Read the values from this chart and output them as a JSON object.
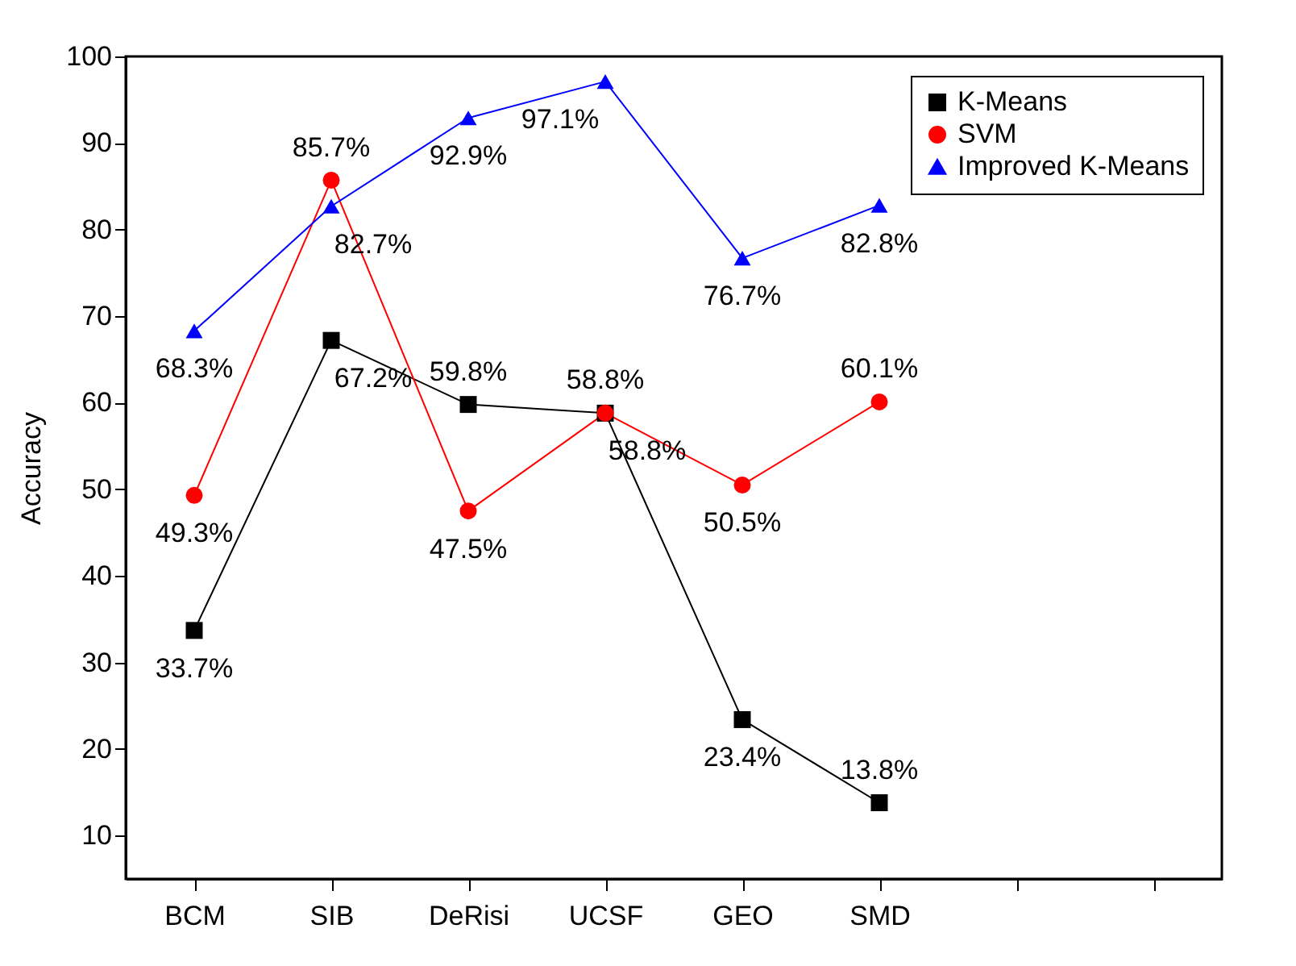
{
  "chart_data": {
    "type": "line",
    "ylabel": "Accuracy",
    "categories": [
      "BCM",
      "SIB",
      "DeRisi",
      "UCSF",
      "GEO",
      "SMD",
      null,
      null
    ],
    "ylim": [
      5,
      100
    ],
    "yticks": [
      10,
      20,
      30,
      40,
      50,
      60,
      70,
      80,
      90,
      100
    ],
    "legend": "top right",
    "grid": false,
    "series": [
      {
        "name": "K-Means",
        "color": "#000000",
        "marker": "square",
        "values": [
          33.7,
          67.2,
          59.8,
          58.8,
          23.4,
          13.8,
          null,
          null
        ],
        "value_labels": [
          "33.7%",
          "67.2%",
          "59.8%",
          "58.8%",
          "23.4%",
          "13.8%",
          null,
          null
        ]
      },
      {
        "name": "SVM",
        "color": "#ff0000",
        "marker": "circle",
        "values": [
          49.3,
          85.7,
          47.5,
          58.8,
          50.5,
          60.1,
          null,
          null
        ],
        "value_labels": [
          "49.3%",
          "85.7%",
          "47.5%",
          "58.8%",
          "50.5%",
          "60.1%",
          null,
          null
        ]
      },
      {
        "name": "Improved K-Means",
        "color": "#0000ff",
        "marker": "triangle",
        "values": [
          68.3,
          82.7,
          92.9,
          97.1,
          76.7,
          82.8,
          null,
          null
        ],
        "value_labels": [
          "68.3%",
          "82.7%",
          "92.9%",
          "97.1%",
          "76.7%",
          "82.8%",
          null,
          null
        ]
      }
    ]
  }
}
